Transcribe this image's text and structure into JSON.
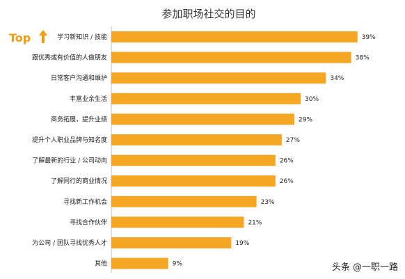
{
  "chart_data": {
    "type": "bar",
    "orientation": "horizontal",
    "title": "参加职场社交的目的",
    "categories": [
      "学习新知识 / 技能",
      "跟优秀或有价值的人做朋友",
      "日常客户沟通和维护",
      "丰富业余生活",
      "商务拓展，提升业绩",
      "提升个人职业品牌与知名度",
      "了解最新的行业 / 公司动向",
      "了解同行的商业情况",
      "寻找新工作机会",
      "寻找合作伙伴",
      "为公司 / 团队寻找优秀人才",
      "其他"
    ],
    "values": [
      39,
      38,
      34,
      30,
      29,
      27,
      26,
      26,
      23,
      21,
      19,
      9
    ],
    "value_labels": [
      "39%",
      "38%",
      "34%",
      "30%",
      "29%",
      "27%",
      "26%",
      "26%",
      "23%",
      "21%",
      "19%",
      "9%"
    ],
    "unit": "%",
    "xlim": [
      0,
      43
    ],
    "grid": false,
    "bar_color": "#f5a623"
  },
  "annotations": {
    "top_label": "Top",
    "top_arrow_icon": "up-arrow-icon",
    "top_color": "#f39c12"
  },
  "watermark": {
    "text": "头条 @一职一路"
  }
}
